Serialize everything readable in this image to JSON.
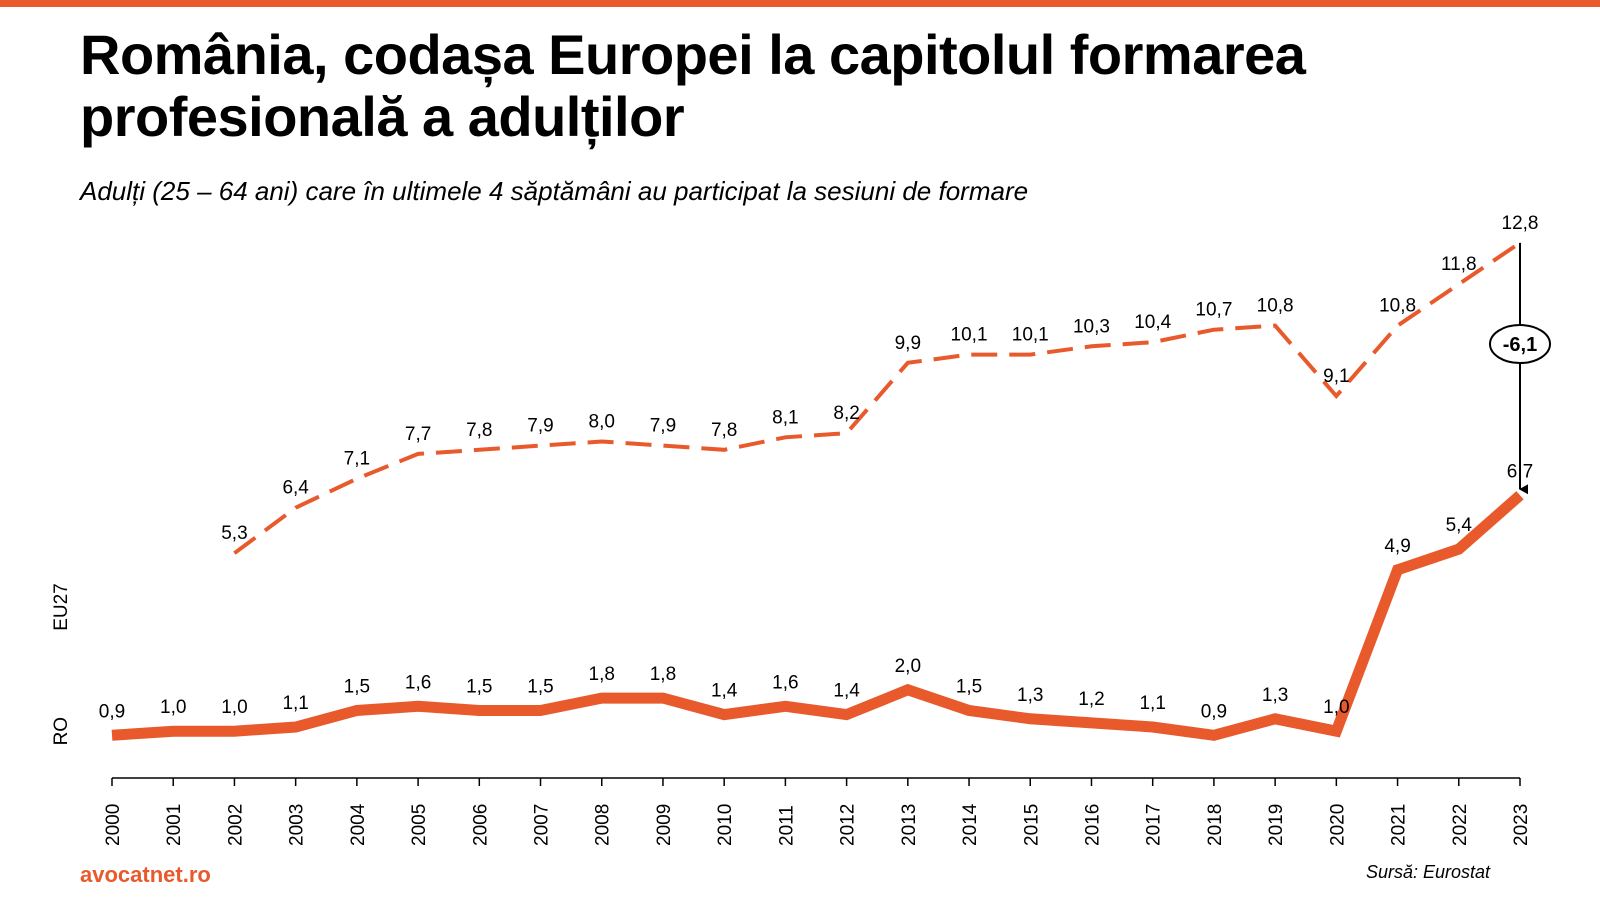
{
  "page": {
    "title": "România, codașa Europei la capitolul formarea profesională a adulților",
    "subtitle": "Adulți (25 – 64 ani) care în ultimele 4 săptămâni au participat la sesiuni de formare",
    "brand": "avocatnet.ro",
    "source": "Sursă: Eurostat"
  },
  "chart_data": {
    "type": "line",
    "title": "România, codașa Europei la capitolul formarea profesională a adulților",
    "subtitle": "Adulți (25 – 64 ani) care în ultimele 4 săptămâni au participat la sesiuni de formare",
    "categories": [
      "2000",
      "2001",
      "2002",
      "2003",
      "2004",
      "2005",
      "2006",
      "2007",
      "2008",
      "2009",
      "2010",
      "2011",
      "2012",
      "2013",
      "2014",
      "2015",
      "2016",
      "2017",
      "2018",
      "2019",
      "2020",
      "2021",
      "2022",
      "2023"
    ],
    "series": [
      {
        "name": "EU27",
        "style": "dashed",
        "color": "#e85a2c",
        "values": [
          null,
          null,
          5.3,
          6.4,
          7.1,
          7.7,
          7.8,
          7.9,
          8.0,
          7.9,
          7.8,
          8.1,
          8.2,
          9.9,
          10.1,
          10.1,
          10.3,
          10.4,
          10.7,
          10.8,
          9.1,
          10.8,
          11.8,
          12.8
        ],
        "labels": [
          null,
          null,
          "5,3",
          "6,4",
          "7,1",
          "7,7",
          "7,8",
          "7,9",
          "8,0",
          "7,9",
          "7,8",
          "8,1",
          "8,2",
          "9,9",
          "10,1",
          "10,1",
          "10,3",
          "10,4",
          "10,7",
          "10,8",
          "9,1",
          "10,8",
          "11,8",
          "12,8"
        ]
      },
      {
        "name": "RO",
        "style": "solid",
        "color": "#e85a2c",
        "values": [
          0.9,
          1.0,
          1.0,
          1.1,
          1.5,
          1.6,
          1.5,
          1.5,
          1.8,
          1.8,
          1.4,
          1.6,
          1.4,
          2.0,
          1.5,
          1.3,
          1.2,
          1.1,
          0.9,
          1.3,
          1.0,
          4.9,
          5.4,
          6.7
        ],
        "labels": [
          "0,9",
          "1,0",
          "1,0",
          "1,1",
          "1,5",
          "1,6",
          "1,5",
          "1,5",
          "1,8",
          "1,8",
          "1,4",
          "1,6",
          "1,4",
          "2,0",
          "1,5",
          "1,3",
          "1,2",
          "1,1",
          "0,9",
          "1,3",
          "1,0",
          "4,9",
          "5,4",
          "6,7"
        ]
      }
    ],
    "annotation": {
      "label": "-6,1",
      "year": "2023",
      "from_series": "EU27",
      "to_series": "RO"
    },
    "xlabel": "",
    "ylabel": "",
    "ylim": [
      0.4,
      13.4
    ],
    "grid": false,
    "legend": "none"
  }
}
